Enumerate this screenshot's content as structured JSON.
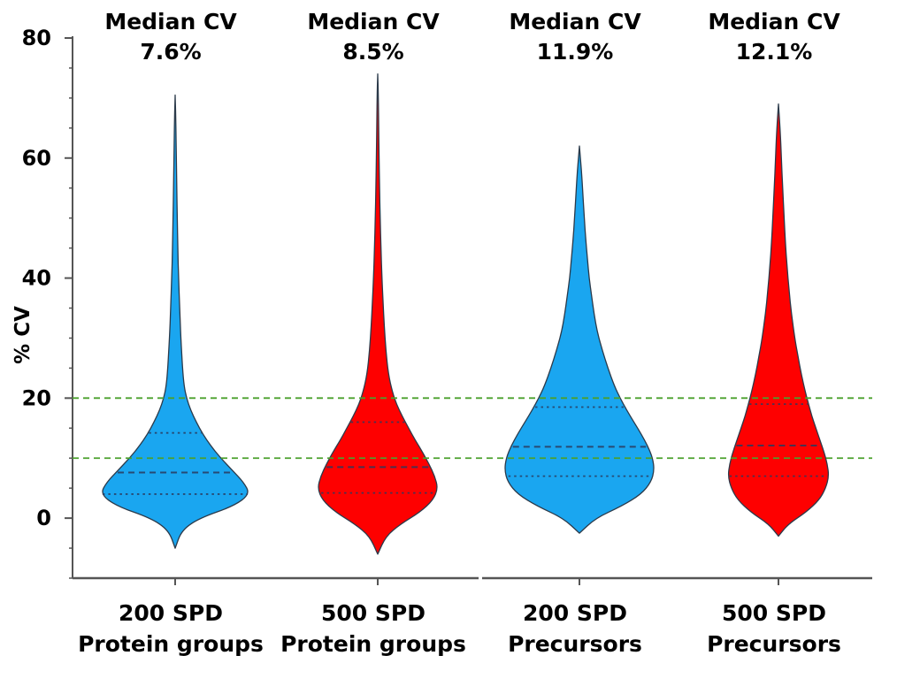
{
  "chart_data": {
    "type": "violin",
    "ylabel": "% CV",
    "xlabel": "",
    "ylim": [
      -10,
      80
    ],
    "yticks": [
      0,
      20,
      40,
      60,
      80
    ],
    "reference_lines": [
      {
        "y": 20,
        "color": "#4aa02c",
        "style": "dashed"
      },
      {
        "y": 10,
        "color": "#4aa02c",
        "style": "dashed"
      }
    ],
    "series": [
      {
        "label_lines": [
          "200 SPD",
          "Protein groups"
        ],
        "annotation_lines": [
          "Median CV",
          "7.6%"
        ],
        "median": 7.6,
        "color": "#1aa6f0",
        "min": -5,
        "max": 70.5,
        "quartiles": [
          4.0,
          7.6,
          14.2
        ],
        "profile": [
          [
            -5,
            0
          ],
          [
            -2,
            8
          ],
          [
            0,
            30
          ],
          [
            2,
            72
          ],
          [
            4,
            92
          ],
          [
            6,
            84
          ],
          [
            8,
            70
          ],
          [
            10,
            56
          ],
          [
            12,
            44
          ],
          [
            14,
            34
          ],
          [
            16,
            26
          ],
          [
            18,
            19
          ],
          [
            20,
            14
          ],
          [
            22,
            11
          ],
          [
            25,
            9
          ],
          [
            30,
            7
          ],
          [
            35,
            5.5
          ],
          [
            40,
            4.2
          ],
          [
            45,
            3.3
          ],
          [
            50,
            2.6
          ],
          [
            55,
            2
          ],
          [
            60,
            1.5
          ],
          [
            65,
            1
          ],
          [
            70.5,
            0
          ]
        ]
      },
      {
        "label_lines": [
          "500 SPD",
          "Protein groups"
        ],
        "annotation_lines": [
          "Median CV",
          "8.5%"
        ],
        "median": 8.5,
        "color": "#fe0000",
        "min": -6,
        "max": 74,
        "quartiles": [
          4.2,
          8.5,
          16.0
        ],
        "profile": [
          [
            -6,
            0
          ],
          [
            -3,
            10
          ],
          [
            -1,
            28
          ],
          [
            1,
            52
          ],
          [
            3,
            68
          ],
          [
            5,
            74
          ],
          [
            7,
            70
          ],
          [
            9,
            63
          ],
          [
            11,
            55
          ],
          [
            13,
            46
          ],
          [
            15,
            38
          ],
          [
            17,
            30
          ],
          [
            19,
            23
          ],
          [
            21,
            18
          ],
          [
            24,
            13
          ],
          [
            28,
            10
          ],
          [
            32,
            8
          ],
          [
            36,
            6.5
          ],
          [
            40,
            5.2
          ],
          [
            45,
            4
          ],
          [
            50,
            3
          ],
          [
            55,
            2.3
          ],
          [
            60,
            1.7
          ],
          [
            65,
            1.2
          ],
          [
            70,
            0.8
          ],
          [
            74,
            0
          ]
        ]
      },
      {
        "label_lines": [
          "200 SPD",
          "Precursors"
        ],
        "annotation_lines": [
          "Median CV",
          "11.9%"
        ],
        "median": 11.9,
        "color": "#1aa6f0",
        "min": -2.5,
        "max": 62,
        "quartiles": [
          7.0,
          11.9,
          18.5
        ],
        "profile": [
          [
            -2.5,
            0
          ],
          [
            0,
            20
          ],
          [
            2,
            52
          ],
          [
            4,
            76
          ],
          [
            6,
            88
          ],
          [
            8,
            92
          ],
          [
            10,
            90
          ],
          [
            12,
            84
          ],
          [
            14,
            76
          ],
          [
            16,
            67
          ],
          [
            18,
            58
          ],
          [
            20,
            50
          ],
          [
            22,
            43
          ],
          [
            25,
            35
          ],
          [
            28,
            28
          ],
          [
            31,
            22
          ],
          [
            34,
            18
          ],
          [
            37,
            15
          ],
          [
            40,
            12
          ],
          [
            43,
            10
          ],
          [
            46,
            8
          ],
          [
            50,
            6
          ],
          [
            54,
            4.2
          ],
          [
            58,
            2.5
          ],
          [
            62,
            0
          ]
        ]
      },
      {
        "label_lines": [
          "500 SPD",
          "Precursors"
        ],
        "annotation_lines": [
          "Median CV",
          "12.1%"
        ],
        "median": 12.1,
        "color": "#fe0000",
        "min": -3,
        "max": 69,
        "quartiles": [
          7.0,
          12.1,
          19.0
        ],
        "profile": [
          [
            -3,
            0
          ],
          [
            -1,
            12
          ],
          [
            1,
            34
          ],
          [
            3,
            50
          ],
          [
            5,
            58
          ],
          [
            7,
            62
          ],
          [
            9,
            60
          ],
          [
            11,
            56
          ],
          [
            13,
            51
          ],
          [
            15,
            46
          ],
          [
            17,
            41
          ],
          [
            19,
            37
          ],
          [
            21,
            33
          ],
          [
            24,
            28
          ],
          [
            27,
            24
          ],
          [
            30,
            20
          ],
          [
            34,
            16
          ],
          [
            38,
            13
          ],
          [
            42,
            10.5
          ],
          [
            46,
            8.5
          ],
          [
            50,
            7
          ],
          [
            55,
            5.2
          ],
          [
            60,
            3.6
          ],
          [
            65,
            2
          ],
          [
            69,
            0
          ]
        ]
      }
    ]
  }
}
